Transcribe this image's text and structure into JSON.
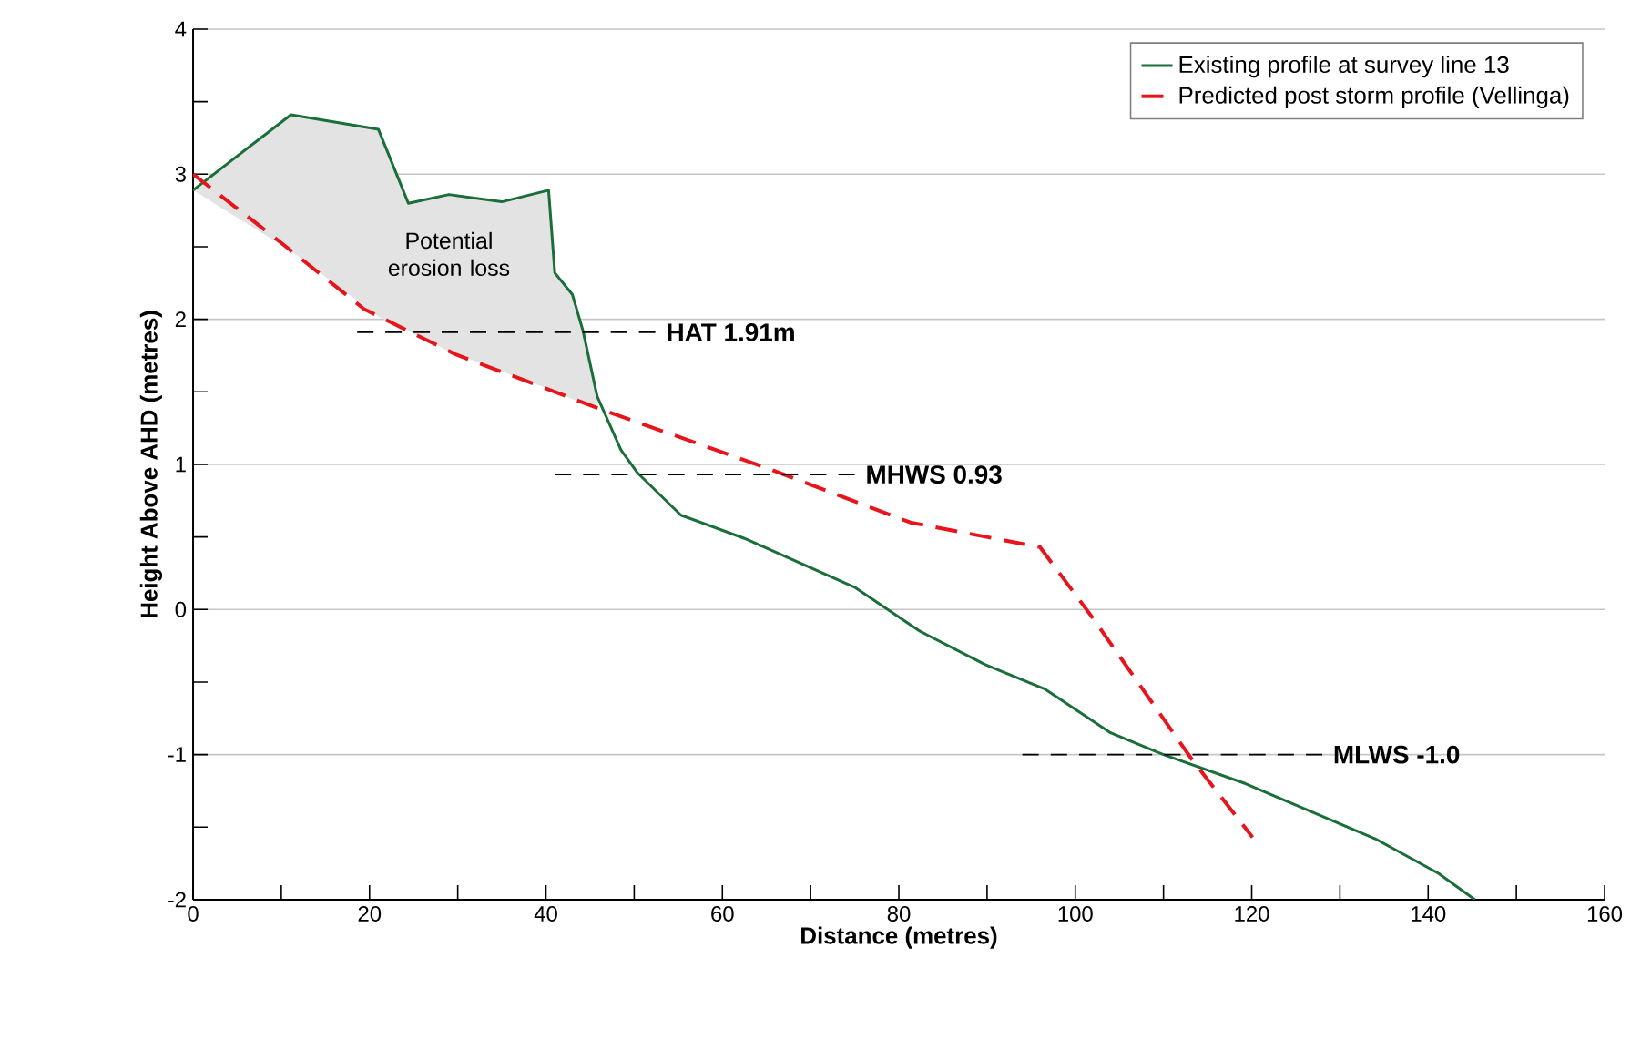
{
  "chart_data": {
    "type": "line",
    "xlabel": "Distance (metres)",
    "ylabel": "Height Above AHD (metres)",
    "xlim": [
      0,
      160
    ],
    "ylim": [
      -2,
      4
    ],
    "xticks": [
      0,
      20,
      40,
      60,
      80,
      100,
      120,
      140,
      160
    ],
    "yticks": [
      -2,
      -1,
      0,
      1,
      2,
      3,
      4
    ],
    "grid": "y",
    "legend": "top right",
    "marker": "none",
    "series": [
      {
        "name": "Existing profile at survey line 13",
        "color": "#1a6e3a",
        "line_style": "solid",
        "x": [
          0,
          11.1,
          21,
          24.4,
          29,
          35,
          40.3,
          41,
          43,
          44.2,
          45.8,
          48.5,
          50.4,
          55.3,
          62.5,
          75.1,
          82.4,
          89.8,
          96.6,
          104,
          110,
          119.3,
          134,
          141.2,
          145.3
        ],
        "values": [
          2.89,
          3.41,
          3.31,
          2.8,
          2.86,
          2.81,
          2.89,
          2.32,
          2.17,
          1.92,
          1.47,
          1.1,
          0.94,
          0.65,
          0.49,
          0.15,
          -0.15,
          -0.38,
          -0.55,
          -0.85,
          -1.0,
          -1.2,
          -1.58,
          -1.82,
          -2.0
        ],
        "lower": [
          2.89,
          2.47,
          2.02,
          1.92,
          1.78,
          1.64,
          1.52,
          1.5,
          1.45,
          1.43,
          1.39,
          null,
          null,
          null,
          null,
          null,
          null,
          null,
          null,
          null,
          null,
          null,
          null,
          null,
          null
        ],
        "upper": [
          2.89,
          3.41,
          3.31,
          2.8,
          2.86,
          2.81,
          2.89,
          2.32,
          2.17,
          1.92,
          1.47,
          null,
          null,
          null,
          null,
          null,
          null,
          null,
          null,
          null,
          null,
          null,
          null,
          null,
          null
        ]
      },
      {
        "name": "Predicted post storm profile (Vellinga)",
        "color": "#e8141b",
        "line_style": "dashed",
        "x": [
          0,
          9.1,
          19.4,
          29.7,
          46.2,
          64.8,
          81.3,
          96,
          102,
          113.3,
          120.1
        ],
        "values": [
          3.0,
          2.57,
          2.07,
          1.76,
          1.38,
          0.98,
          0.6,
          0.43,
          -0.06,
          -1.04,
          -1.57
        ]
      },
      {
        "color": "#000000",
        "line_style": "dashed",
        "x": [
          18.6,
          52.4
        ],
        "values": [
          1.91,
          1.91
        ]
      },
      {
        "color": "#000000",
        "line_style": "dashed",
        "x": [
          41,
          75
        ],
        "values": [
          0.93,
          0.93
        ]
      },
      {
        "color": "#000000",
        "line_style": "dashed",
        "x": [
          94,
          128
        ],
        "values": [
          -1.0,
          -1.0
        ]
      }
    ],
    "annotations": [
      "Potential erosion loss",
      "HAT  1.91m",
      "MHWS  0.93",
      "MLWS  -1.0"
    ]
  }
}
